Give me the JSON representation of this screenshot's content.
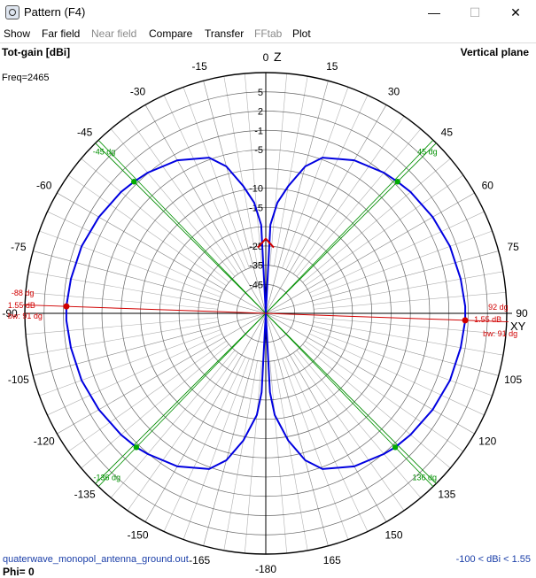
{
  "window": {
    "title": "Pattern   (F4)",
    "minimize_glyph": "—",
    "maximize_glyph": "☐",
    "close_glyph": "✕"
  },
  "menu": [
    {
      "label": "Show",
      "enabled": true
    },
    {
      "label": "Far field",
      "enabled": true
    },
    {
      "label": "Near field",
      "enabled": false
    },
    {
      "label": "Compare",
      "enabled": true
    },
    {
      "label": "Transfer",
      "enabled": true
    },
    {
      "label": "FFtab",
      "enabled": false
    },
    {
      "label": "Plot",
      "enabled": true
    }
  ],
  "plot": {
    "header_left": "Tot-gain [dBi]",
    "header_right": "Vertical plane",
    "freq_label": "Freq=2465",
    "axis_top_label": "Z",
    "axis_right_label": "XY",
    "footer_file": "quaterwave_monopol_antenna_ground.out",
    "footer_range": "-100 < dBi < 1.55",
    "phi_label": "Phi= 0",
    "colors": {
      "pattern": "#0000e0",
      "max_marker": "#d00000",
      "halfpower": "#009000",
      "grid": "#b0b0b0",
      "grid_dark": "#555555"
    }
  },
  "chart_data": {
    "type": "polar",
    "title": "Tot-gain [dBi]",
    "subtitle": "Vertical plane",
    "unit": "dBi",
    "frequency": "Freq=2465",
    "angle_ticks": [
      "0",
      "15",
      "30",
      "45",
      "60",
      "75",
      "90",
      "105",
      "120",
      "135",
      "150",
      "165",
      "-180",
      "-165",
      "-150",
      "-135",
      "-120",
      "-105",
      "-90",
      "-75",
      "-60",
      "-45",
      "-30",
      "-15"
    ],
    "radial_ticks": [
      "5",
      "2",
      "-1",
      "-5",
      "-10",
      "-15",
      "-25",
      "-35",
      "-45"
    ],
    "radial_range": [
      -100,
      1.55
    ],
    "max_gain_dB": 1.55,
    "markers": [
      {
        "angle": 92,
        "label": "92 dg",
        "gain": "1.55 dB",
        "bw": "bw: 91 dg"
      },
      {
        "angle": -88,
        "label": "-88 dg",
        "gain": "1.55 dB",
        "bw": "bw: 91 dg"
      }
    ],
    "halfpower_lines": [
      {
        "angle": 45,
        "label": "45 dg"
      },
      {
        "angle": -45,
        "label": "-45 dg"
      },
      {
        "angle": 136,
        "label": "136 dg"
      },
      {
        "angle": -136,
        "label": "-136 dg"
      }
    ],
    "series": [
      {
        "theta": [
          0,
          3,
          6,
          10,
          15,
          20,
          30,
          40,
          45,
          50,
          60,
          70,
          80,
          88,
          92,
          100,
          110,
          120,
          130,
          136,
          140,
          150,
          160,
          165,
          170,
          175,
          177,
          180
        ],
        "gain": [
          -100,
          -19.5,
          -13.6,
          -9.5,
          -6.5,
          -4.6,
          -2.3,
          -0.9,
          -0.5,
          -0.1,
          0.5,
          1.0,
          1.3,
          1.55,
          1.55,
          1.3,
          1.0,
          0.5,
          -0.1,
          -0.5,
          -0.9,
          -2.3,
          -4.6,
          -6.5,
          -9.5,
          -16,
          -22,
          -100
        ]
      }
    ],
    "phi": 0
  }
}
